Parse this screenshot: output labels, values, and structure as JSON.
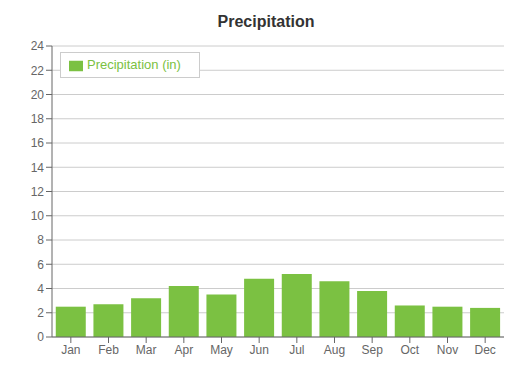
{
  "chart_data": {
    "type": "bar",
    "title": "Precipitation",
    "categories": [
      "Jan",
      "Feb",
      "Mar",
      "Apr",
      "May",
      "Jun",
      "Jul",
      "Aug",
      "Sep",
      "Oct",
      "Nov",
      "Dec"
    ],
    "series": [
      {
        "name": "Precipitation (in)",
        "color": "#7bc142",
        "values": [
          2.5,
          2.7,
          3.2,
          4.2,
          3.5,
          4.8,
          5.2,
          4.6,
          3.8,
          2.6,
          2.5,
          2.4
        ]
      }
    ],
    "ylim": [
      0,
      24
    ],
    "yticks": [
      0,
      2,
      4,
      6,
      8,
      10,
      12,
      14,
      16,
      18,
      20,
      22,
      24
    ],
    "grid": true,
    "legend": "upper left"
  }
}
